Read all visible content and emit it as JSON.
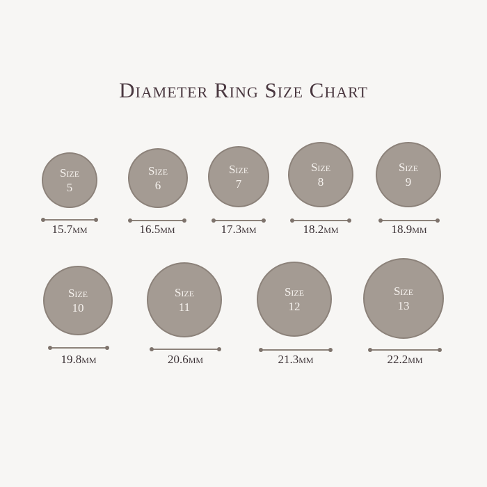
{
  "title": "Diameter Ring Size Chart",
  "size_word": "Size",
  "colors": {
    "ring_fill": "#a49b93",
    "ring_border": "#8c827a",
    "title": "#4a3840"
  },
  "rings": [
    {
      "size": "5",
      "diameter": "15.7mm"
    },
    {
      "size": "6",
      "diameter": "16.5mm"
    },
    {
      "size": "7",
      "diameter": "17.3mm"
    },
    {
      "size": "8",
      "diameter": "18.2mm"
    },
    {
      "size": "9",
      "diameter": "18.9mm"
    },
    {
      "size": "10",
      "diameter": "19.8mm"
    },
    {
      "size": "11",
      "diameter": "20.6mm"
    },
    {
      "size": "12",
      "diameter": "21.3mm"
    },
    {
      "size": "13",
      "diameter": "22.2mm"
    }
  ]
}
